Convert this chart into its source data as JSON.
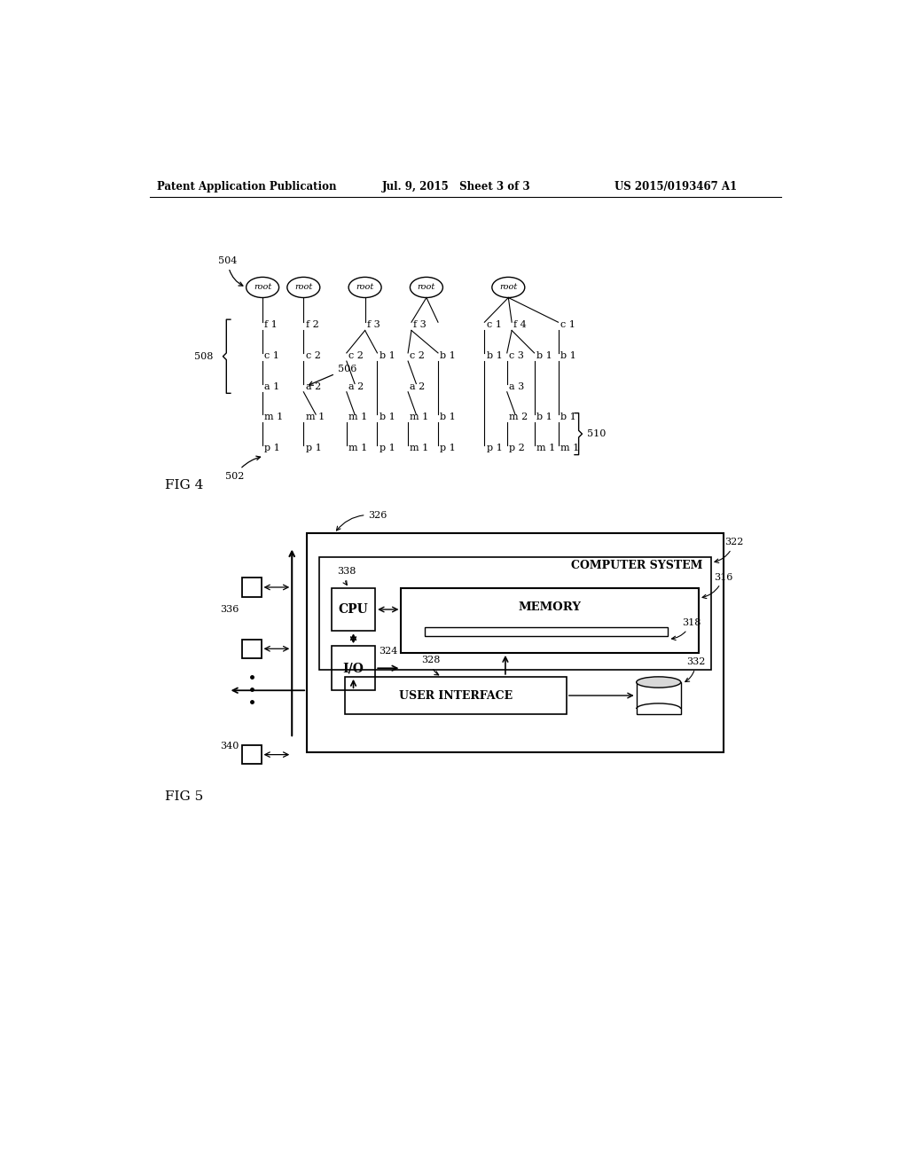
{
  "header_left": "Patent Application Publication",
  "header_mid": "Jul. 9, 2015   Sheet 3 of 3",
  "header_right": "US 2015/0193467 A1",
  "fig4_label": "FIG 4",
  "fig5_label": "FIG 5",
  "background": "#ffffff"
}
